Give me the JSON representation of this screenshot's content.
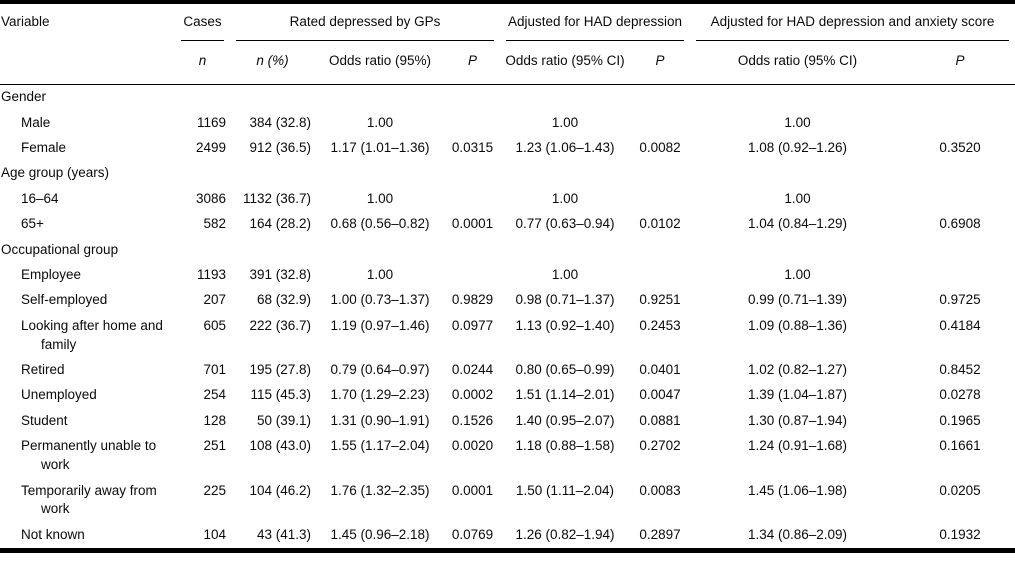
{
  "table": {
    "variable_header": "Variable",
    "groups": [
      {
        "label": "Cases"
      },
      {
        "label": "Rated depressed by GPs"
      },
      {
        "label": "Adjusted for HAD depression"
      },
      {
        "label": "Adjusted for HAD depression and anxiety score"
      }
    ],
    "subheaders": [
      "n",
      "n (%)",
      "Odds ratio (95%)",
      "P",
      "Odds ratio (95% CI)",
      "P",
      "Odds ratio (95% CI)",
      "P"
    ],
    "sections": [
      {
        "title": "Gender",
        "rows": [
          {
            "label": "Male",
            "cells": [
              "1169",
              "384 (32.8)",
              "1.00",
              "",
              "1.00",
              "",
              "1.00",
              ""
            ]
          },
          {
            "label": "Female",
            "cells": [
              "2499",
              "912 (36.5)",
              "1.17 (1.01–1.36)",
              "0.0315",
              "1.23 (1.06–1.43)",
              "0.0082",
              "1.08 (0.92–1.26)",
              "0.3520"
            ]
          }
        ]
      },
      {
        "title": "Age group (years)",
        "rows": [
          {
            "label": "16–64",
            "cells": [
              "3086",
              "1132 (36.7)",
              "1.00",
              "",
              "1.00",
              "",
              "1.00",
              ""
            ]
          },
          {
            "label": "65+",
            "cells": [
              "582",
              "164 (28.2)",
              "0.68 (0.56–0.82)",
              "0.0001",
              "0.77 (0.63–0.94)",
              "0.0102",
              "1.04 (0.84–1.29)",
              "0.6908"
            ]
          }
        ]
      },
      {
        "title": "Occupational group",
        "rows": [
          {
            "label": "Employee",
            "cells": [
              "1193",
              "391 (32.8)",
              "1.00",
              "",
              "1.00",
              "",
              "1.00",
              ""
            ]
          },
          {
            "label": "Self-employed",
            "cells": [
              "207",
              "68 (32.9)",
              "1.00 (0.73–1.37)",
              "0.9829",
              "0.98 (0.71–1.37)",
              "0.9251",
              "0.99 (0.71–1.39)",
              "0.9725"
            ]
          },
          {
            "label": "Looking after home and family",
            "cells": [
              "605",
              "222 (36.7)",
              "1.19 (0.97–1.46)",
              "0.0977",
              "1.13 (0.92–1.40)",
              "0.2453",
              "1.09 (0.88–1.36)",
              "0.4184"
            ]
          },
          {
            "label": "Retired",
            "cells": [
              "701",
              "195 (27.8)",
              "0.79 (0.64–0.97)",
              "0.0244",
              "0.80 (0.65–0.99)",
              "0.0401",
              "1.02 (0.82–1.27)",
              "0.8452"
            ]
          },
          {
            "label": "Unemployed",
            "cells": [
              "254",
              "115 (45.3)",
              "1.70 (1.29–2.23)",
              "0.0002",
              "1.51 (1.14–2.01)",
              "0.0047",
              "1.39 (1.04–1.87)",
              "0.0278"
            ]
          },
          {
            "label": "Student",
            "cells": [
              "128",
              "50 (39.1)",
              "1.31 (0.90–1.91)",
              "0.1526",
              "1.40 (0.95–2.07)",
              "0.0881",
              "1.30 (0.87–1.94)",
              "0.1965"
            ]
          },
          {
            "label": "Permanently unable to work",
            "cells": [
              "251",
              "108 (43.0)",
              "1.55 (1.17–2.04)",
              "0.0020",
              "1.18 (0.88–1.58)",
              "0.2702",
              "1.24 (0.91–1.68)",
              "0.1661"
            ]
          },
          {
            "label": "Temporarily away from work",
            "cells": [
              "225",
              "104 (46.2)",
              "1.76 (1.32–2.35)",
              "0.0001",
              "1.50 (1.11–2.04)",
              "0.0083",
              "1.45 (1.06–1.98)",
              "0.0205"
            ]
          },
          {
            "label": "Not known",
            "cells": [
              "104",
              "43 (41.3)",
              "1.45 (0.96–2.18)",
              "0.0769",
              "1.26 (0.82–1.94)",
              "0.2897",
              "1.34 (0.86–2.09)",
              "0.1932"
            ]
          }
        ]
      }
    ]
  }
}
